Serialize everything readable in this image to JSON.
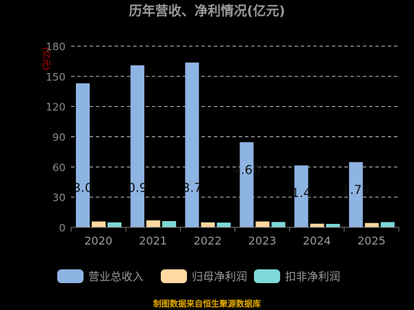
{
  "chart_data": {
    "type": "bar",
    "title": "历年营收、净利情况(亿元)",
    "ylabel": "(亿元)",
    "categories": [
      "2020",
      "2021",
      "2022",
      "2023",
      "2024",
      "2025"
    ],
    "ylim": [
      0,
      180
    ],
    "yticks": [
      0,
      30,
      60,
      90,
      120,
      150,
      180
    ],
    "grid": true,
    "legend_position": "bottom",
    "series": [
      {
        "name": "营业总收入",
        "color": "#8eb4e3",
        "values": [
          143.09,
          160.96,
          163.75,
          84.6,
          61.49,
          64.79
        ]
      },
      {
        "name": "归母净利润",
        "color": "#ffd9a0",
        "values": [
          5.8,
          6.9,
          4.9,
          5.8,
          3.6,
          4.3
        ]
      },
      {
        "name": "扣非净利润",
        "color": "#7fd8d8",
        "values": [
          4.9,
          6.2,
          4.7,
          5.3,
          3.4,
          5.2
        ]
      }
    ],
    "data_labels": [
      "3.0",
      "0.9",
      "3.7",
      "4.60",
      "1.4",
      "1.79"
    ],
    "source": "制图数据来自恒生聚源数据库"
  }
}
